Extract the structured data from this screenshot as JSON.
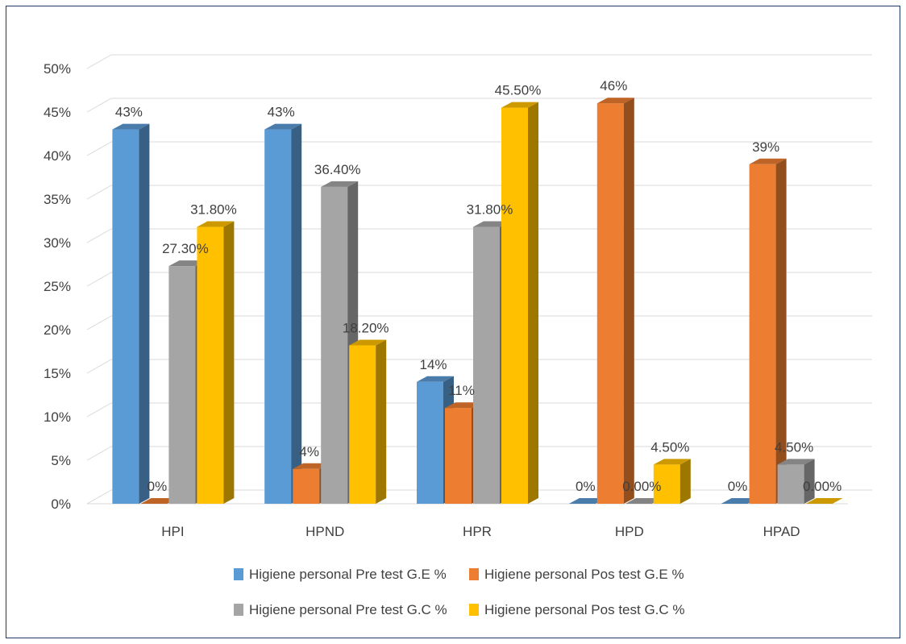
{
  "chart_data": {
    "type": "bar",
    "style": "3d-clustered-column",
    "title": "",
    "xlabel": "",
    "ylabel": "",
    "ylim": [
      0,
      50
    ],
    "y_ticks": [
      "0%",
      "5%",
      "10%",
      "15%",
      "20%",
      "25%",
      "30%",
      "35%",
      "40%",
      "45%",
      "50%"
    ],
    "grid": true,
    "legend_position": "bottom",
    "categories": [
      "HPI",
      "HPND",
      "HPR",
      "HPD",
      "HPAD"
    ],
    "series": [
      {
        "name": "Higiene personal Pre test G.E %",
        "color": "#5b9bd5",
        "values": [
          43,
          43,
          14,
          0,
          0
        ],
        "labels": [
          "43%",
          "43%",
          "14%",
          "0%",
          "0%"
        ]
      },
      {
        "name": "Higiene personal Pos test G.E %",
        "color": "#ed7d31",
        "values": [
          0,
          4,
          11,
          46,
          39
        ],
        "labels": [
          "0%",
          "4%",
          "11%",
          "46%",
          "39%"
        ]
      },
      {
        "name": "Higiene personal Pre test G.C %",
        "color": "#a5a5a5",
        "values": [
          27.3,
          36.4,
          31.8,
          0,
          4.5
        ],
        "labels": [
          "27.30%",
          "36.40%",
          "31.80%",
          "0.00%",
          "4.50%"
        ]
      },
      {
        "name": "Higiene personal Pos test G.C %",
        "color": "#ffc000",
        "values": [
          31.8,
          18.2,
          45.5,
          4.5,
          0
        ],
        "labels": [
          "31.80%",
          "18.20%",
          "45.50%",
          "4.50%",
          "0.00%"
        ]
      }
    ]
  }
}
